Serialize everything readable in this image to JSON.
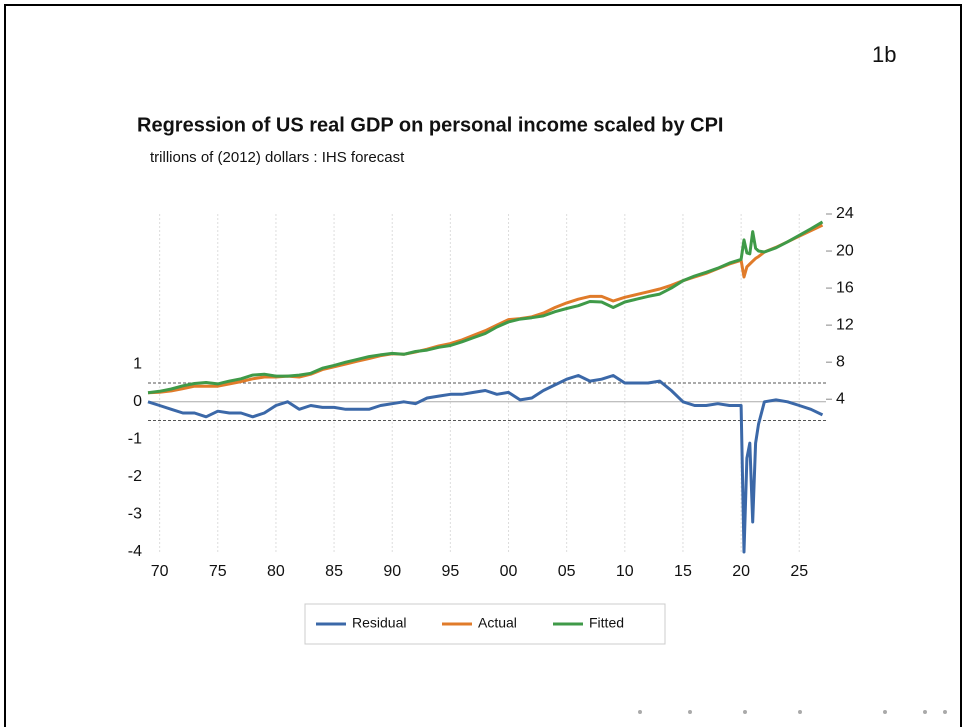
{
  "slide_label": "1b",
  "chart_data": {
    "type": "line",
    "title": "Regression of US real GDP on personal income scaled by CPI",
    "subtitle": "trillions of (2012) dollars :  IHS forecast",
    "x": [
      1969,
      1970,
      1971,
      1972,
      1973,
      1974,
      1975,
      1976,
      1977,
      1978,
      1979,
      1980,
      1981,
      1982,
      1983,
      1984,
      1985,
      1986,
      1987,
      1988,
      1989,
      1990,
      1991,
      1992,
      1993,
      1994,
      1995,
      1996,
      1997,
      1998,
      1999,
      2000,
      2001,
      2002,
      2003,
      2004,
      2005,
      2006,
      2007,
      2008,
      2009,
      2010,
      2011,
      2012,
      2013,
      2014,
      2015,
      2016,
      2017,
      2018,
      2019,
      2020,
      2020.25,
      2020.5,
      2020.75,
      2021,
      2021.25,
      2021.5,
      2022,
      2023,
      2024,
      2025,
      2026,
      2027
    ],
    "xlim": [
      1969,
      2027.3
    ],
    "xticks": [
      {
        "value": 1970,
        "label": "70"
      },
      {
        "value": 1975,
        "label": "75"
      },
      {
        "value": 1980,
        "label": "80"
      },
      {
        "value": 1985,
        "label": "85"
      },
      {
        "value": 1990,
        "label": "90"
      },
      {
        "value": 1995,
        "label": "95"
      },
      {
        "value": 2000,
        "label": "00"
      },
      {
        "value": 2005,
        "label": "05"
      },
      {
        "value": 2010,
        "label": "10"
      },
      {
        "value": 2015,
        "label": "15"
      },
      {
        "value": 2020,
        "label": "20"
      },
      {
        "value": 2025,
        "label": "25"
      }
    ],
    "ylim": [
      -4,
      5
    ],
    "yticks": [
      -4,
      -3,
      -2,
      -1,
      0,
      1
    ],
    "y2lim": [
      -12.5,
      24
    ],
    "y2ticks": [
      4,
      8,
      12,
      16,
      20,
      24
    ],
    "reference_lines": [
      0.5,
      -0.5
    ],
    "grid": true,
    "legend": "bottom",
    "series": [
      {
        "name": "Residual",
        "color": "#3b68a8",
        "values": [
          0,
          -0.1,
          -0.2,
          -0.3,
          -0.3,
          -0.4,
          -0.25,
          -0.3,
          -0.3,
          -0.4,
          -0.3,
          -0.1,
          0,
          -0.2,
          -0.1,
          -0.15,
          -0.15,
          -0.2,
          -0.2,
          -0.2,
          -0.1,
          -0.05,
          0,
          -0.05,
          0.1,
          0.15,
          0.2,
          0.2,
          0.25,
          0.3,
          0.2,
          0.25,
          0.05,
          0.1,
          0.3,
          0.45,
          0.6,
          0.7,
          0.55,
          0.6,
          0.7,
          0.5,
          0.5,
          0.5,
          0.55,
          0.3,
          0,
          -0.1,
          -0.1,
          -0.05,
          -0.1,
          -0.1,
          -4,
          -1.5,
          -1.1,
          -3.2,
          -1.1,
          -0.6,
          0,
          0.05,
          0,
          -0.1,
          -0.2,
          -0.35
        ]
      },
      {
        "name": "Actual",
        "color": "#e07b2a",
        "axis": "y2",
        "values": [
          4.7,
          4.75,
          4.9,
          5.15,
          5.4,
          5.4,
          5.4,
          5.65,
          5.9,
          6.2,
          6.4,
          6.4,
          6.5,
          6.4,
          6.7,
          7.2,
          7.5,
          7.8,
          8.1,
          8.4,
          8.7,
          8.9,
          8.85,
          9.1,
          9.4,
          9.75,
          10,
          10.4,
          10.9,
          11.4,
          12,
          12.6,
          12.7,
          12.9,
          13.3,
          13.9,
          14.4,
          14.8,
          15.1,
          15.1,
          14.6,
          15,
          15.3,
          15.6,
          15.9,
          16.3,
          16.8,
          17.2,
          17.6,
          18.1,
          18.6,
          19,
          17.2,
          18.3,
          18.6,
          18.9,
          19.2,
          19.4,
          19.9,
          20.4,
          21,
          21.6,
          22.2,
          22.8
        ]
      },
      {
        "name": "Fitted",
        "color": "#3f9a48",
        "axis": "y2",
        "values": [
          4.7,
          4.85,
          5.1,
          5.45,
          5.7,
          5.8,
          5.65,
          5.95,
          6.2,
          6.6,
          6.7,
          6.5,
          6.5,
          6.6,
          6.8,
          7.35,
          7.65,
          8,
          8.3,
          8.6,
          8.8,
          8.95,
          8.85,
          9.15,
          9.3,
          9.6,
          9.8,
          10.2,
          10.65,
          11.1,
          11.8,
          12.35,
          12.65,
          12.8,
          13,
          13.45,
          13.8,
          14.1,
          14.55,
          14.5,
          13.9,
          14.5,
          14.8,
          15.1,
          15.35,
          16,
          16.8,
          17.3,
          17.7,
          18.15,
          18.7,
          19.1,
          21.2,
          19.8,
          19.7,
          22.1,
          20.3,
          20,
          19.9,
          20.35,
          21,
          21.7,
          22.4,
          23.15
        ]
      }
    ]
  }
}
